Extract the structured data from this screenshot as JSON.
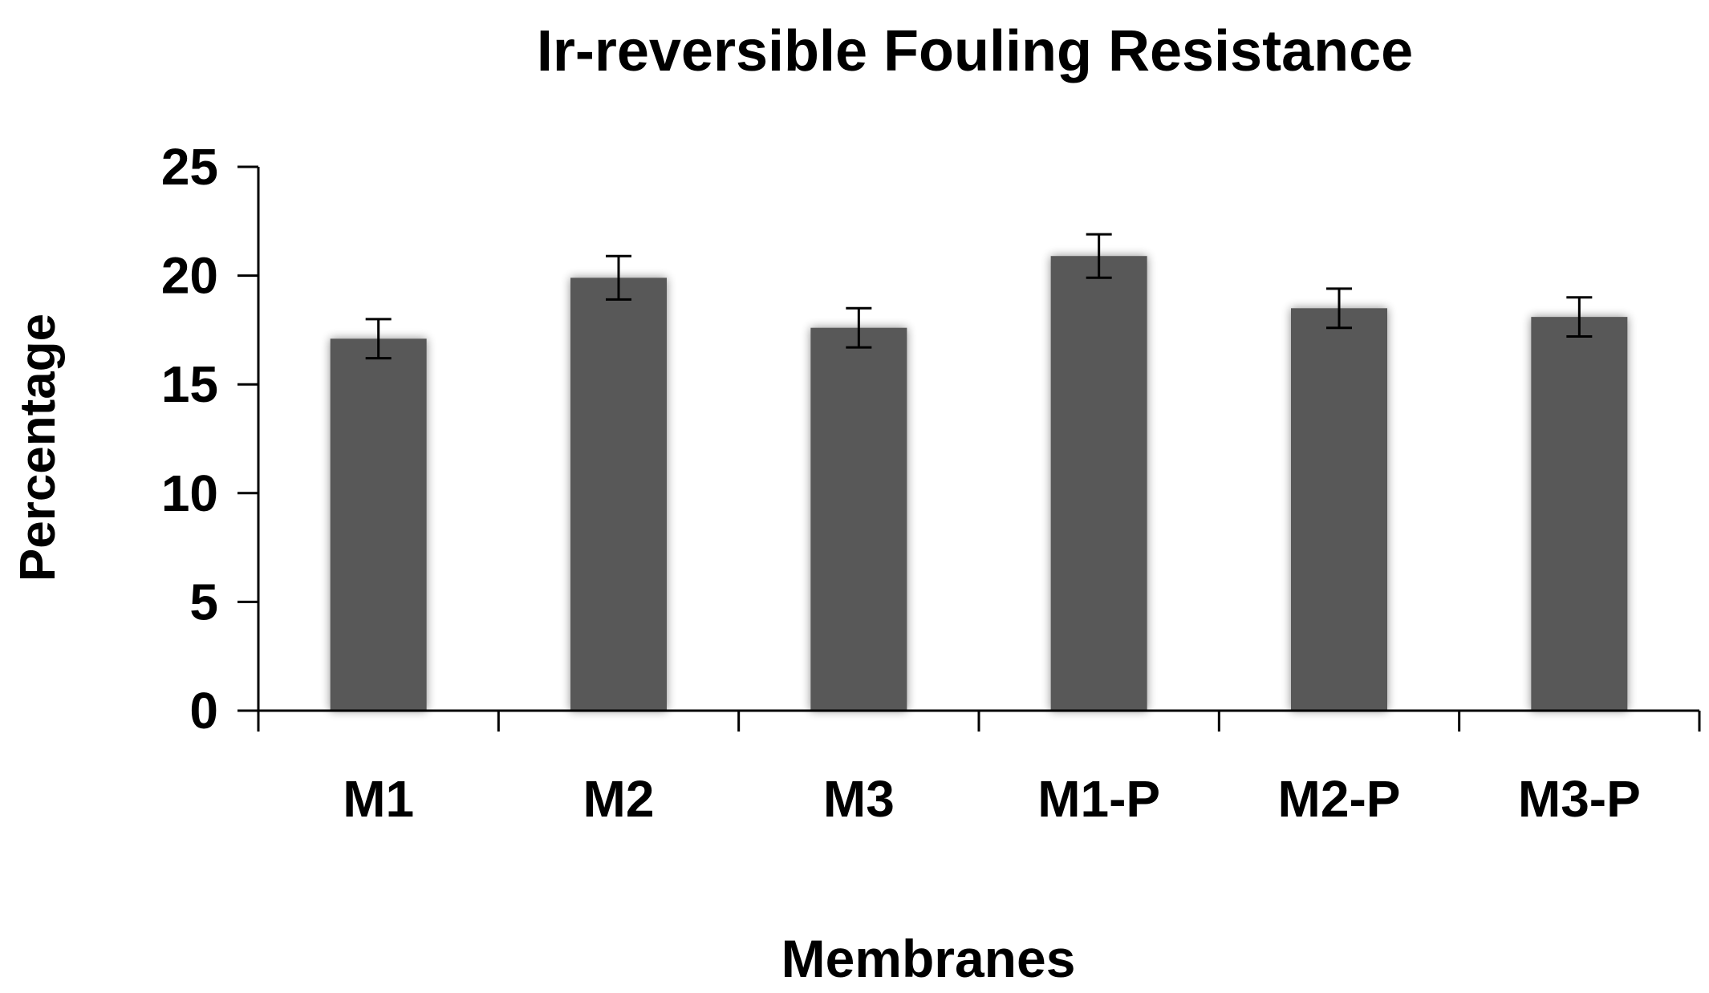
{
  "chart_data": {
    "type": "bar",
    "title": "Ir-reversible Fouling Resistance",
    "xlabel": "Membranes",
    "ylabel": "Percentage",
    "categories": [
      "M1",
      "M2",
      "M3",
      "M1-P",
      "M2-P",
      "M3-P"
    ],
    "series": [
      {
        "values": [
          17.1,
          19.9,
          17.6,
          20.9,
          18.5,
          18.1
        ],
        "error": [
          0.9,
          1.0,
          0.9,
          1.0,
          0.9,
          0.9
        ]
      }
    ],
    "ylim": [
      0,
      25
    ],
    "yticks": [
      "0",
      "5",
      "10",
      "15",
      "20",
      "25"
    ],
    "grid": false,
    "legend": "none",
    "bar_color": "#595959",
    "axis_color": "#000000"
  }
}
